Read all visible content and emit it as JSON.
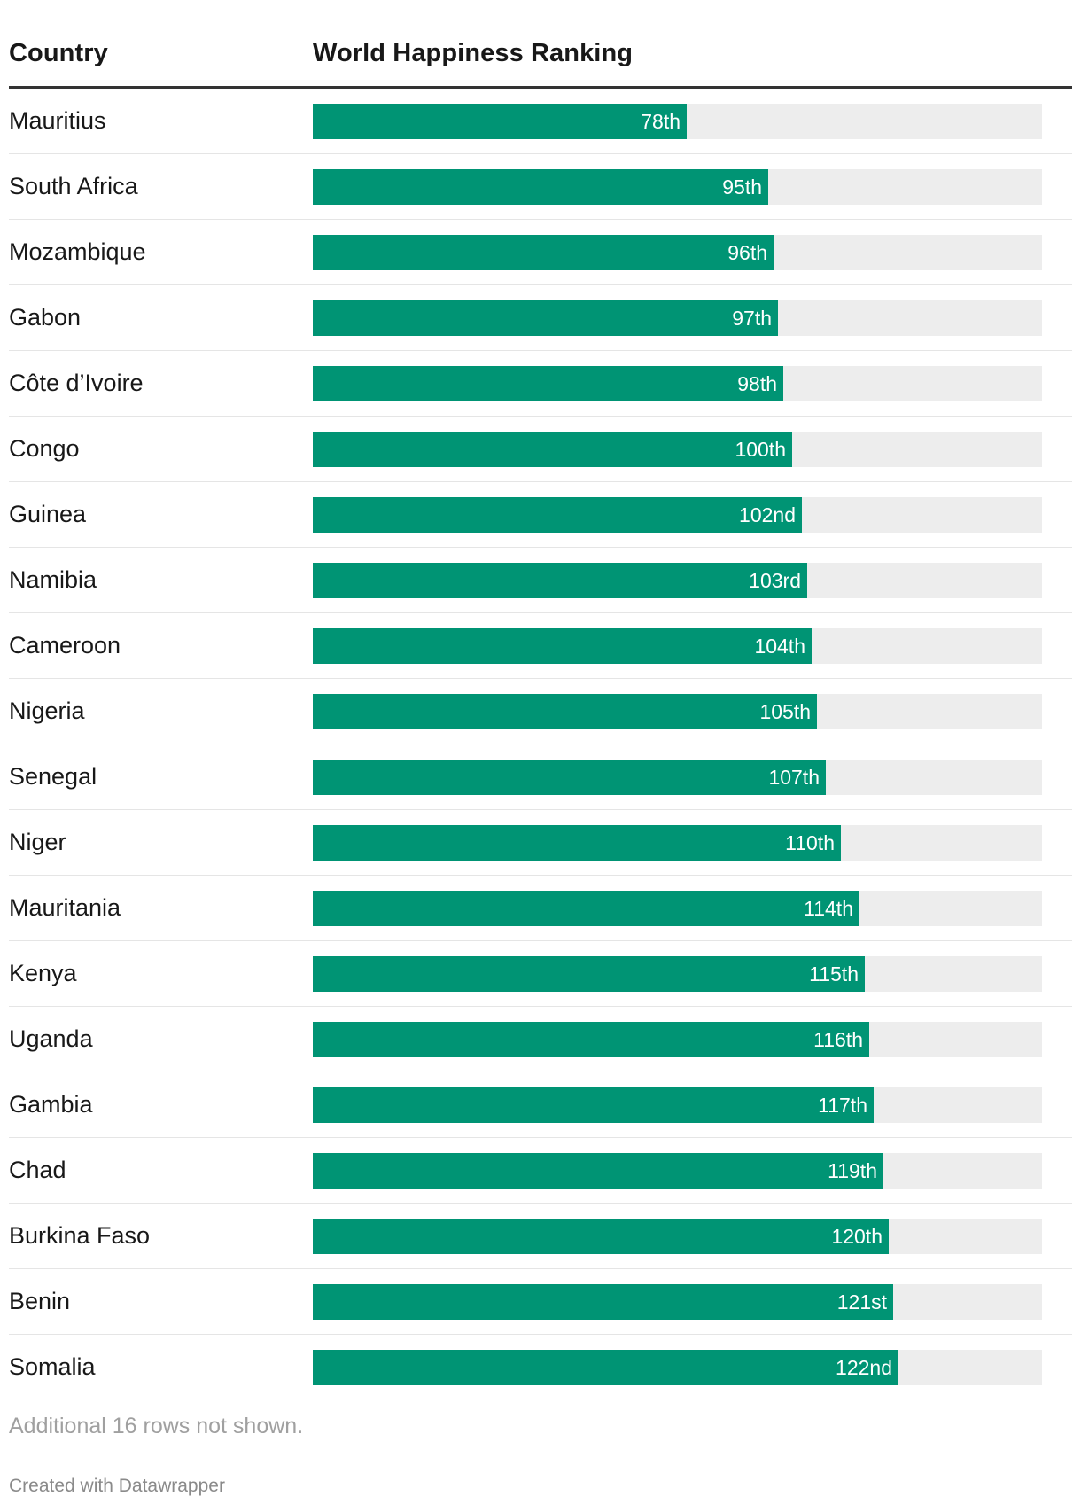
{
  "header": {
    "country_label": "Country",
    "ranking_label": "World Happiness Ranking"
  },
  "colors": {
    "bar": "#009474",
    "track": "#ededed",
    "rule": "#333333"
  },
  "chart_data": {
    "type": "bar",
    "orientation": "horizontal",
    "title": "",
    "xlabel": "World Happiness Ranking",
    "ylabel": "Country",
    "xlim": [
      0,
      152
    ],
    "grid": false,
    "legend": "none",
    "categories": [
      "Mauritius",
      "South Africa",
      "Mozambique",
      "Gabon",
      "Côte d’Ivoire",
      "Congo",
      "Guinea",
      "Namibia",
      "Cameroon",
      "Nigeria",
      "Senegal",
      "Niger",
      "Mauritania",
      "Kenya",
      "Uganda",
      "Gambia",
      "Chad",
      "Burkina Faso",
      "Benin",
      "Somalia"
    ],
    "values": [
      78,
      95,
      96,
      97,
      98,
      100,
      102,
      103,
      104,
      105,
      107,
      110,
      114,
      115,
      116,
      117,
      119,
      120,
      121,
      122
    ],
    "labels": [
      "78th",
      "95th",
      "96th",
      "97th",
      "98th",
      "100th",
      "102nd",
      "103rd",
      "104th",
      "105th",
      "107th",
      "110th",
      "114th",
      "115th",
      "116th",
      "117th",
      "119th",
      "120th",
      "121st",
      "122nd"
    ]
  },
  "footnote": "Additional 16 rows not shown.",
  "credit": "Created with Datawrapper"
}
